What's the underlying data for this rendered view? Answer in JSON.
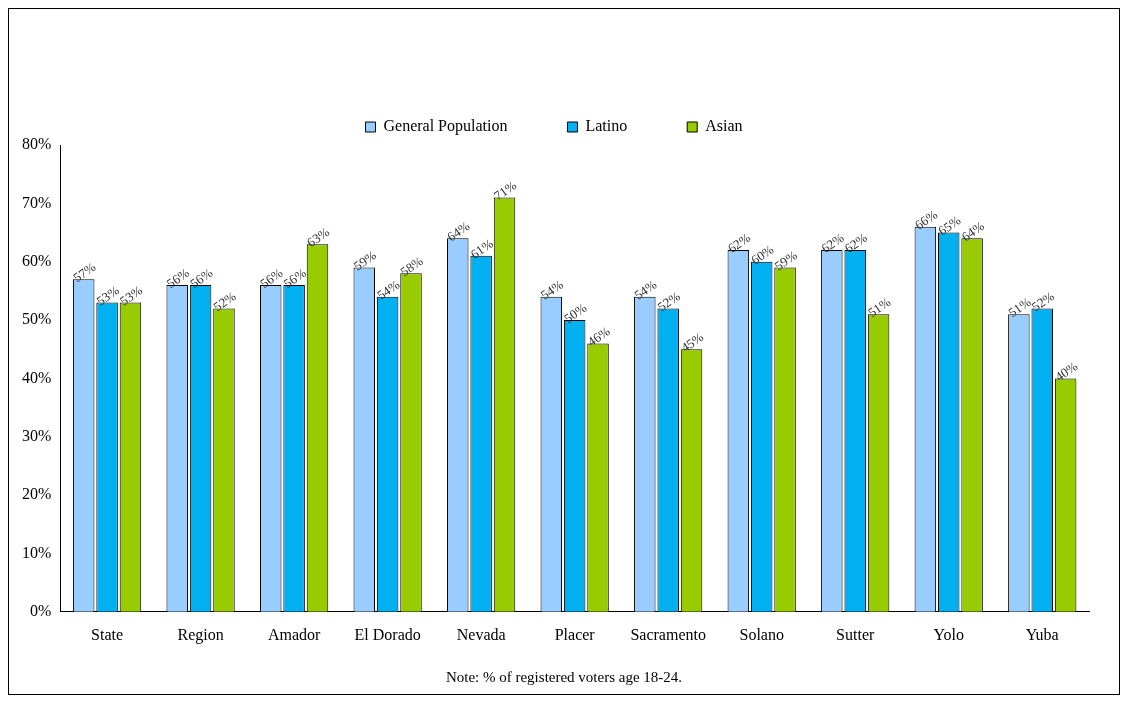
{
  "chart_data": {
    "type": "bar",
    "categories": [
      "State",
      "Region",
      "Amador",
      "El Dorado",
      "Nevada",
      "Placer",
      "Sacramento",
      "Solano",
      "Sutter",
      "Yolo",
      "Yuba"
    ],
    "series": [
      {
        "name": "General Population",
        "color": "#99ccff",
        "values": [
          57,
          56,
          56,
          59,
          64,
          54,
          54,
          62,
          62,
          66,
          51
        ],
        "value_labels": [
          "57%",
          "56%",
          "56%",
          "59%",
          "64%",
          "54%",
          "54%",
          "62%",
          "62%",
          "66%",
          "51%"
        ]
      },
      {
        "name": "Latino",
        "color": "#00b0f0",
        "values": [
          53,
          56,
          56,
          54,
          61,
          50,
          52,
          60,
          62,
          65,
          52
        ],
        "value_labels": [
          "53%",
          "56%",
          "56%",
          "54%",
          "61%",
          "50%",
          "52%",
          "60%",
          "62%",
          "65%",
          "52%"
        ]
      },
      {
        "name": "Asian",
        "color": "#99cc00",
        "values": [
          53,
          52,
          63,
          58,
          71,
          46,
          45,
          59,
          51,
          64,
          40
        ],
        "value_labels": [
          "53%",
          "52%",
          "63%",
          "58%",
          "71%",
          "46%",
          "45%",
          "59%",
          "51%",
          "64%",
          "40%"
        ]
      }
    ],
    "ylim": [
      0,
      80
    ],
    "yticks": [
      {
        "value": 0,
        "label": "0%"
      },
      {
        "value": 10,
        "label": "10%"
      },
      {
        "value": 20,
        "label": "20%"
      },
      {
        "value": 30,
        "label": "30%"
      },
      {
        "value": 40,
        "label": "40%"
      },
      {
        "value": 50,
        "label": "50%"
      },
      {
        "value": 60,
        "label": "60%"
      },
      {
        "value": 70,
        "label": "70%"
      },
      {
        "value": 80,
        "label": "80%"
      }
    ],
    "grid": false,
    "legend": "top",
    "annotations": [
      "Note:  % of registered voters age 18-24."
    ]
  }
}
